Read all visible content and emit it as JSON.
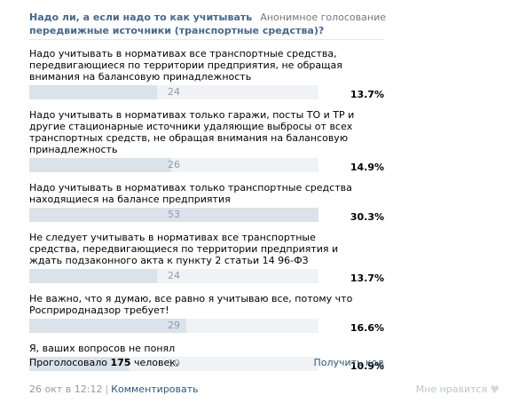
{
  "poll": {
    "title": "Надо ли, а если надо то как учитывать в проектах ПДВ передвижные источники (транспортные средства)?",
    "type_label": "Анонимное голосование",
    "options": [
      {
        "text": "Надо учитывать в нормативах все транспортные средства, передвигающиеся по территории предприятия, не обращая внимания на балансовую принадлежность",
        "votes": "24",
        "percent": "13.7%",
        "share": 0.443
      },
      {
        "text": "Надо учитывать в нормативах только гаражи, посты ТО и ТР и другие стационарные источники удаляющие выбросы от всех транспортных средств, не обращая внимания на балансовую принадлежность",
        "votes": "26",
        "percent": "14.9%",
        "share": 0.49
      },
      {
        "text": "Надо учитывать в нормативах только транспортные средства находящиеся на балансе предприятия",
        "votes": "53",
        "percent": "30.3%",
        "share": 1.0
      },
      {
        "text": "Не следует учитывать в нормативах все транспортные средства, передвигающиеся по территории предприятия и ждать подзаконного акта к пункту 2 статьи 14 96-ФЗ",
        "votes": "24",
        "percent": "13.7%",
        "share": 0.443
      },
      {
        "text": "Не важно, что я думаю, все равно я учитываю все, потому что Росприроднадзор требует!",
        "votes": "29",
        "percent": "16.6%",
        "share": 0.543
      },
      {
        "text": "Я, ваших вопросов не понял",
        "votes": "19",
        "percent": "10.9%",
        "share": 0.344
      }
    ],
    "total_prefix": "Проголосовало",
    "total_count": "175",
    "total_suffix": "человек.",
    "get_code_label": "Получить код"
  },
  "post": {
    "date": "26 окт в 12:12",
    "separator": "|",
    "comment_label": "Комментировать",
    "like_label": "Мне нравится",
    "like_icon": "heart-icon"
  },
  "colors": {
    "title": "#45688e",
    "link": "#2b587a",
    "bar_fill": "#dae2ea",
    "bar_track": "#f0f2f5",
    "bar_count": "#8b9db2"
  }
}
